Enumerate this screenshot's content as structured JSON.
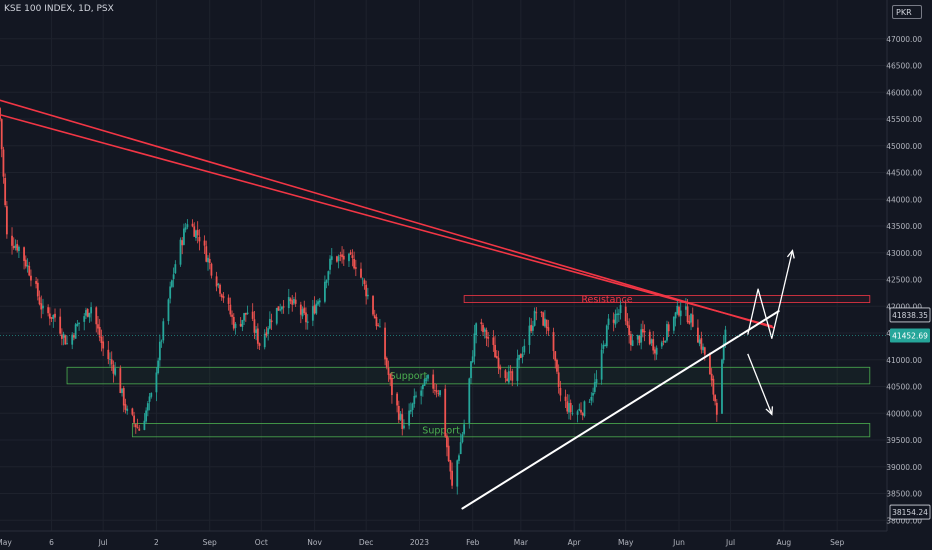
{
  "header": {
    "title": "KSE 100 INDEX, 1D, PSX",
    "currency": "PKR"
  },
  "colors": {
    "background": "#131722",
    "up": "#26a69a",
    "down": "#ef5350",
    "trendline": "#f23645",
    "support": "#4caf50",
    "resistance": "#f23645",
    "arrow": "#ffffff",
    "current_price": "#26a69a",
    "axis_text": "#b2b5be"
  },
  "chart_data": {
    "type": "candlestick",
    "x": [
      "2022-05-02",
      "2023-09-30"
    ],
    "ylim": [
      37800,
      47500
    ],
    "y_ticks": [
      "47000.00",
      "46500.00",
      "46000.00",
      "45500.00",
      "45000.00",
      "44500.00",
      "44000.00",
      "43500.00",
      "43000.00",
      "42500.00",
      "42000.00",
      "41500.00",
      "41000.00",
      "40500.00",
      "40000.00",
      "39500.00",
      "39000.00",
      "38500.00",
      "38000.00"
    ],
    "x_ticks": [
      "May",
      "6",
      "Jul",
      "2",
      "Sep",
      "Oct",
      "Nov",
      "Dec",
      "2023",
      "Feb",
      "Mar",
      "Apr",
      "May",
      "Jun",
      "Jul",
      "Aug",
      "Sep"
    ],
    "price_labels": [
      {
        "value": 41838.35,
        "label": "41838.35",
        "style": "outline"
      },
      {
        "value": 41452.69,
        "label": "41452.69",
        "style": "current"
      },
      {
        "value": 38154.24,
        "label": "38154.24",
        "style": "outline"
      }
    ],
    "zones": [
      {
        "name": "Resistance",
        "from": "2023-01-27",
        "to": "2023-09-20",
        "low": 42070,
        "high": 42200,
        "color": "#f23645"
      },
      {
        "name": "Support",
        "from": "2022-06-10",
        "to": "2023-09-20",
        "low": 40550,
        "high": 40860,
        "color": "#4caf50"
      },
      {
        "name": "Support",
        "from": "2022-07-18",
        "to": "2023-09-20",
        "low": 39560,
        "high": 39810,
        "color": "#4caf50"
      }
    ],
    "trendlines": [
      {
        "from": [
          "2022-05-02",
          45850
        ],
        "to": [
          "2023-07-26",
          41600
        ],
        "color": "#f23645"
      },
      {
        "from": [
          "2022-05-02",
          45580
        ],
        "to": [
          "2023-07-25",
          41630
        ],
        "color": "#f23645"
      },
      {
        "from": [
          "2023-01-26",
          38220
        ],
        "to": [
          "2023-07-29",
          41910
        ],
        "color": "#ffffff"
      }
    ],
    "arrows": [
      {
        "points": [
          [
            "2023-07-11",
            41470
          ],
          [
            "2023-07-17",
            42320
          ],
          [
            "2023-07-25",
            41400
          ],
          [
            "2023-08-06",
            43040
          ]
        ]
      },
      {
        "points": [
          [
            "2023-07-11",
            41110
          ],
          [
            "2023-07-25",
            39980
          ]
        ]
      }
    ],
    "anchors": [
      [
        "2022-05-02",
        45500
      ],
      [
        "2022-05-06",
        43300
      ],
      [
        "2022-05-13",
        43100
      ],
      [
        "2022-05-20",
        42600
      ],
      [
        "2022-05-27",
        41900
      ],
      [
        "2022-06-03",
        41800
      ],
      [
        "2022-06-10",
        41300
      ],
      [
        "2022-06-17",
        41700
      ],
      [
        "2022-06-24",
        42000
      ],
      [
        "2022-07-01",
        41200
      ],
      [
        "2022-07-08",
        40800
      ],
      [
        "2022-07-15",
        40000
      ],
      [
        "2022-07-22",
        39700
      ],
      [
        "2022-07-29",
        40300
      ],
      [
        "2022-08-05",
        41600
      ],
      [
        "2022-08-12",
        42800
      ],
      [
        "2022-08-19",
        43600
      ],
      [
        "2022-08-26",
        43300
      ],
      [
        "2022-09-02",
        42700
      ],
      [
        "2022-09-09",
        42200
      ],
      [
        "2022-09-16",
        41600
      ],
      [
        "2022-09-23",
        41900
      ],
      [
        "2022-09-30",
        41300
      ],
      [
        "2022-10-07",
        41800
      ],
      [
        "2022-10-14",
        42100
      ],
      [
        "2022-10-21",
        42000
      ],
      [
        "2022-10-28",
        41700
      ],
      [
        "2022-11-04",
        42200
      ],
      [
        "2022-11-11",
        42900
      ],
      [
        "2022-11-18",
        42900
      ],
      [
        "2022-11-25",
        42800
      ],
      [
        "2022-12-02",
        42200
      ],
      [
        "2022-12-09",
        41500
      ],
      [
        "2022-12-16",
        40400
      ],
      [
        "2022-12-23",
        39700
      ],
      [
        "2022-12-30",
        40300
      ],
      [
        "2023-01-06",
        40600
      ],
      [
        "2023-01-13",
        40400
      ],
      [
        "2023-01-20",
        38600
      ],
      [
        "2023-01-27",
        39800
      ],
      [
        "2023-02-03",
        41700
      ],
      [
        "2023-02-10",
        41400
      ],
      [
        "2023-02-17",
        40900
      ],
      [
        "2023-02-24",
        40600
      ],
      [
        "2023-03-03",
        41300
      ],
      [
        "2023-03-10",
        41900
      ],
      [
        "2023-03-17",
        41600
      ],
      [
        "2023-03-24",
        40300
      ],
      [
        "2023-03-31",
        40000
      ],
      [
        "2023-04-07",
        40100
      ],
      [
        "2023-04-14",
        40600
      ],
      [
        "2023-04-21",
        41700
      ],
      [
        "2023-04-28",
        41900
      ],
      [
        "2023-05-05",
        41300
      ],
      [
        "2023-05-12",
        41500
      ],
      [
        "2023-05-19",
        41200
      ],
      [
        "2023-05-26",
        41600
      ],
      [
        "2023-06-02",
        42000
      ],
      [
        "2023-06-09",
        41700
      ],
      [
        "2023-06-16",
        41100
      ],
      [
        "2023-06-23",
        40100
      ],
      [
        "2023-06-28",
        41450
      ]
    ]
  }
}
